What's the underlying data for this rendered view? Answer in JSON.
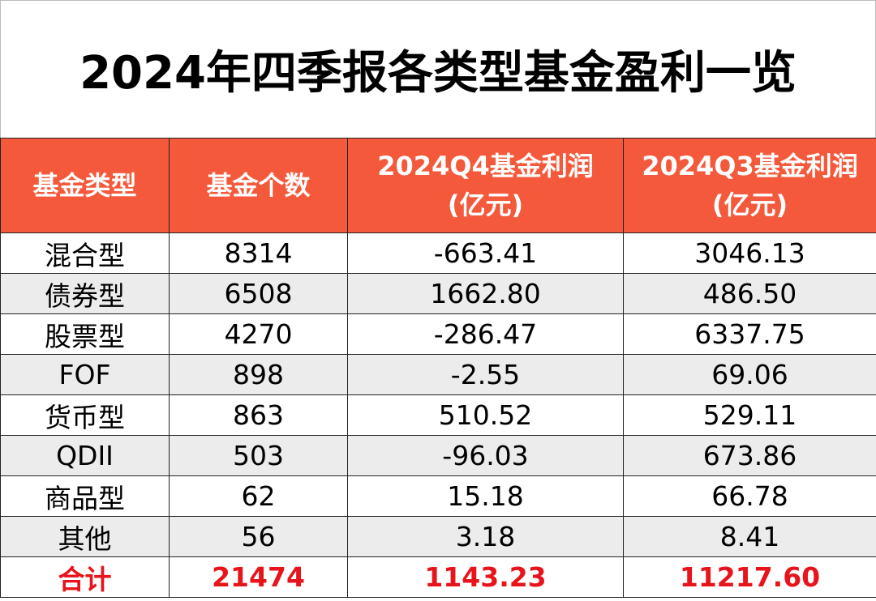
{
  "title": "2024年四季报各类型基金盈利一览",
  "table": {
    "headers": [
      "基金类型",
      "基金个数",
      "2024Q4基金利润\n(亿元)",
      "2024Q3基金利润\n(亿元)"
    ],
    "rows": [
      [
        "混合型",
        "8314",
        "-663.41",
        "3046.13"
      ],
      [
        "债券型",
        "6508",
        "1662.80",
        "486.50"
      ],
      [
        "股票型",
        "4270",
        "-286.47",
        "6337.75"
      ],
      [
        "FOF",
        "898",
        "-2.55",
        "69.06"
      ],
      [
        "货币型",
        "863",
        "510.52",
        "529.11"
      ],
      [
        "QDII",
        "503",
        "-96.03",
        "673.86"
      ],
      [
        "商品型",
        "62",
        "15.18",
        "66.78"
      ],
      [
        "其他",
        "56",
        "3.18",
        "8.41"
      ]
    ],
    "total": [
      "合计",
      "21474",
      "1143.23",
      "11217.60"
    ]
  }
}
